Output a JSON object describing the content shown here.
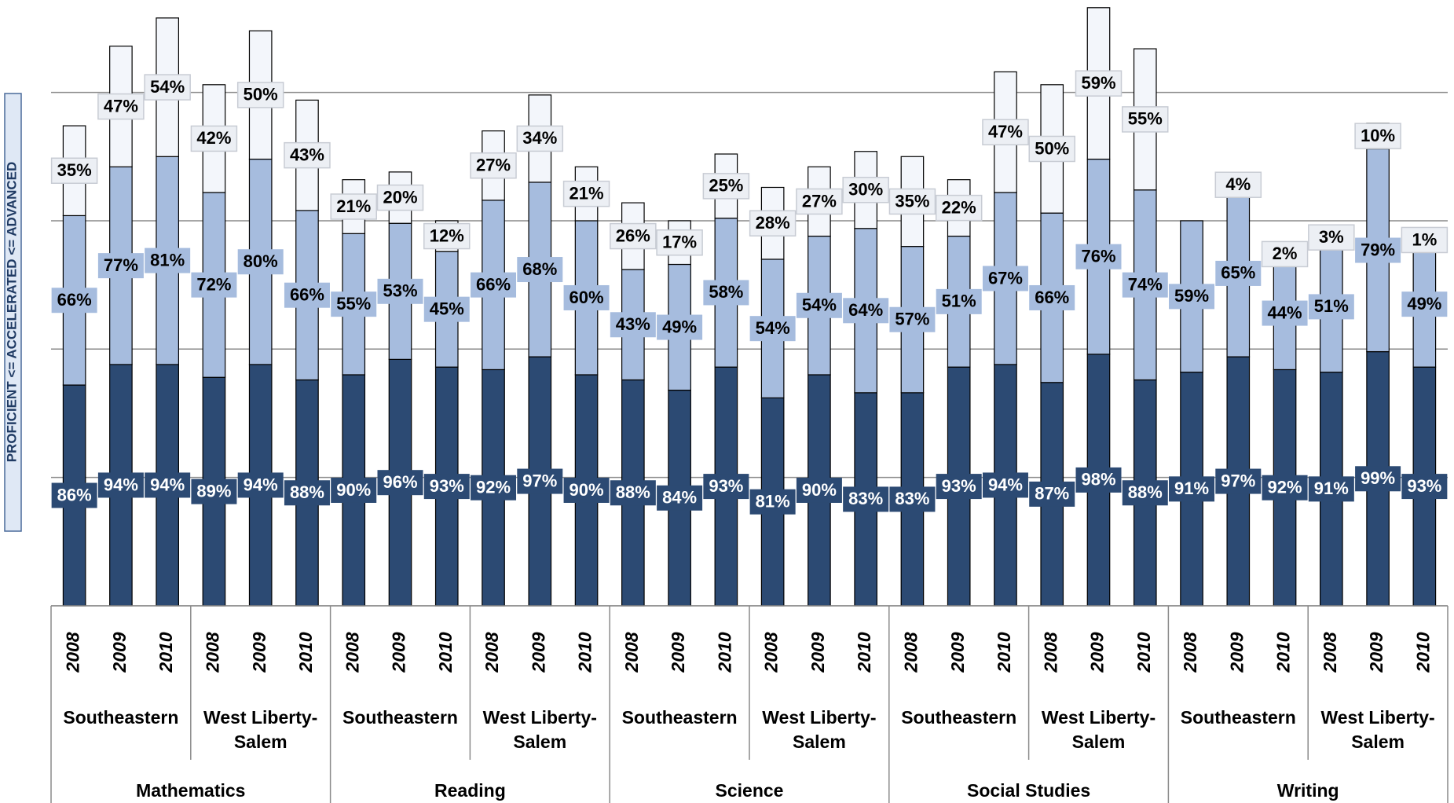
{
  "chart_data": {
    "type": "stacked_bar",
    "y_axis_label": "PROFICIENT <= ACCELERATED <= ADVANCED",
    "categories": [
      "2008",
      "2009",
      "2010",
      "2008",
      "2009",
      "2010",
      "2008",
      "2009",
      "2010",
      "2008",
      "2009",
      "2010",
      "2008",
      "2009",
      "2010",
      "2008",
      "2009",
      "2010",
      "2008",
      "2009",
      "2010",
      "2008",
      "2009",
      "2010",
      "2008",
      "2009",
      "2010",
      "2008",
      "2009",
      "2010"
    ],
    "schools": [
      "Southeastern",
      "West Liberty-Salem",
      "Southeastern",
      "West Liberty-Salem",
      "Southeastern",
      "West Liberty-Salem",
      "Southeastern",
      "West Liberty-Salem",
      "Southeastern",
      "West Liberty-Salem"
    ],
    "subjects": [
      "Mathematics",
      "Reading",
      "Science",
      "Social Studies",
      "Writing"
    ],
    "series": [
      {
        "color": "#2c4a73",
        "values": [
          86,
          94,
          94,
          89,
          94,
          88,
          90,
          96,
          93,
          92,
          97,
          90,
          88,
          84,
          93,
          81,
          90,
          83,
          83,
          93,
          94,
          87,
          98,
          88,
          91,
          97,
          92,
          91,
          99,
          93
        ],
        "value_labels": [
          "86%",
          "94%",
          "94%",
          "89%",
          "94%",
          "88%",
          "90%",
          "96%",
          "93%",
          "92%",
          "97%",
          "90%",
          "88%",
          "84%",
          "93%",
          "81%",
          "90%",
          "83%",
          "83%",
          "93%",
          "94%",
          "87%",
          "98%",
          "88%",
          "91%",
          "97%",
          "92%",
          "91%",
          "99%",
          "93%"
        ]
      },
      {
        "color": "#a6bcde",
        "values": [
          66,
          77,
          81,
          72,
          80,
          66,
          55,
          53,
          45,
          66,
          68,
          60,
          43,
          49,
          58,
          54,
          54,
          64,
          57,
          51,
          67,
          66,
          76,
          74,
          59,
          65,
          44,
          51,
          79,
          49
        ],
        "value_labels": [
          "66%",
          "77%",
          "81%",
          "72%",
          "80%",
          "66%",
          "55%",
          "53%",
          "45%",
          "66%",
          "68%",
          "60%",
          "43%",
          "49%",
          "58%",
          "54%",
          "54%",
          "64%",
          "57%",
          "51%",
          "67%",
          "66%",
          "76%",
          "74%",
          "59%",
          "65%",
          "44%",
          "51%",
          "79%",
          "49%"
        ]
      },
      {
        "color": "#f3f6fb",
        "values": [
          35,
          47,
          54,
          42,
          50,
          43,
          21,
          20,
          12,
          27,
          34,
          21,
          26,
          17,
          25,
          28,
          27,
          30,
          35,
          22,
          47,
          50,
          59,
          55,
          null,
          4,
          2,
          3,
          10,
          1
        ],
        "value_labels": [
          "35%",
          "47%",
          "54%",
          "42%",
          "50%",
          "43%",
          "21%",
          "20%",
          "12%",
          "27%",
          "34%",
          "21%",
          "26%",
          "17%",
          "25%",
          "28%",
          "27%",
          "30%",
          "35%",
          "22%",
          "47%",
          "50%",
          "59%",
          "55%",
          null,
          "4%",
          "2%",
          "3%",
          "10%",
          "1%"
        ]
      }
    ],
    "ylim": [
      0,
      236
    ],
    "yticks": [
      0,
      50,
      100,
      150,
      200
    ],
    "grid": true
  }
}
